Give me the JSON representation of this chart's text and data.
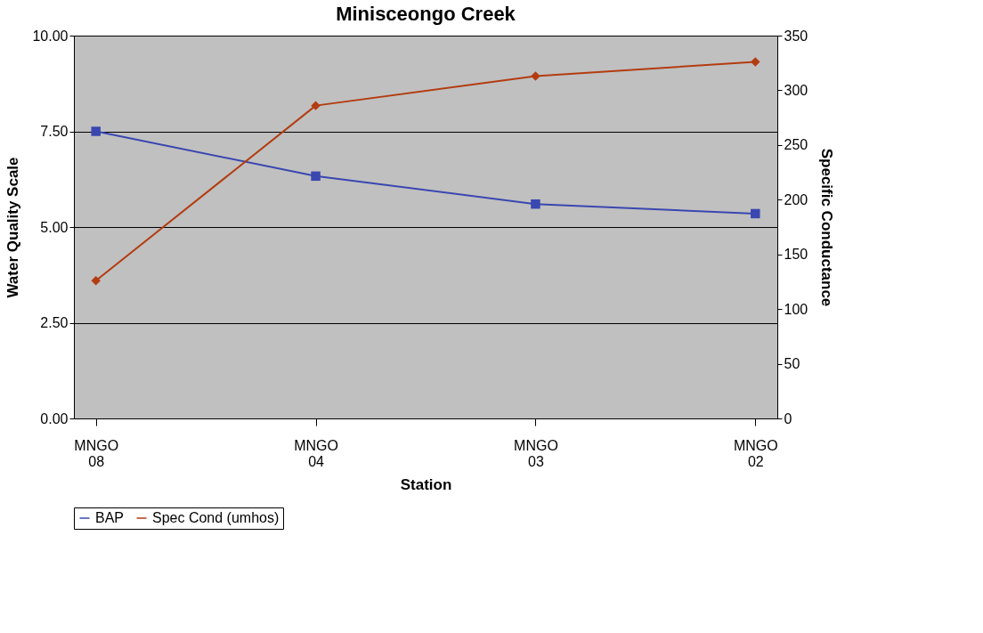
{
  "chart_data": {
    "type": "line",
    "title": "Minisceongo Creek",
    "xlabel": "Station",
    "ylabel": "Water Quality Scale",
    "y2label": "Specific Conductance",
    "categories": [
      "MNGO 08",
      "MNGO 04",
      "MNGO 03",
      "MNGO 02"
    ],
    "ylim": [
      0,
      10
    ],
    "yticks": [
      {
        "value": 0,
        "label": "0.00"
      },
      {
        "value": 2.5,
        "label": "2.50"
      },
      {
        "value": 5,
        "label": "5.00"
      },
      {
        "value": 7.5,
        "label": "7.50"
      },
      {
        "value": 10,
        "label": "10.00"
      }
    ],
    "y2lim": [
      0,
      350
    ],
    "y2ticks": [
      0,
      50,
      100,
      150,
      200,
      250,
      300,
      350
    ],
    "grid": "y",
    "legend": "bottom",
    "series": [
      {
        "name": "BAP",
        "color": "#3a47b0",
        "marker": "square",
        "values": [
          7.5,
          6.33,
          5.6,
          5.35
        ]
      },
      {
        "name": "Spec Cond (umhos)",
        "color": "#b33c10",
        "marker": "diamond",
        "axis": "y2",
        "values": [
          126,
          286,
          313,
          326
        ]
      }
    ]
  }
}
